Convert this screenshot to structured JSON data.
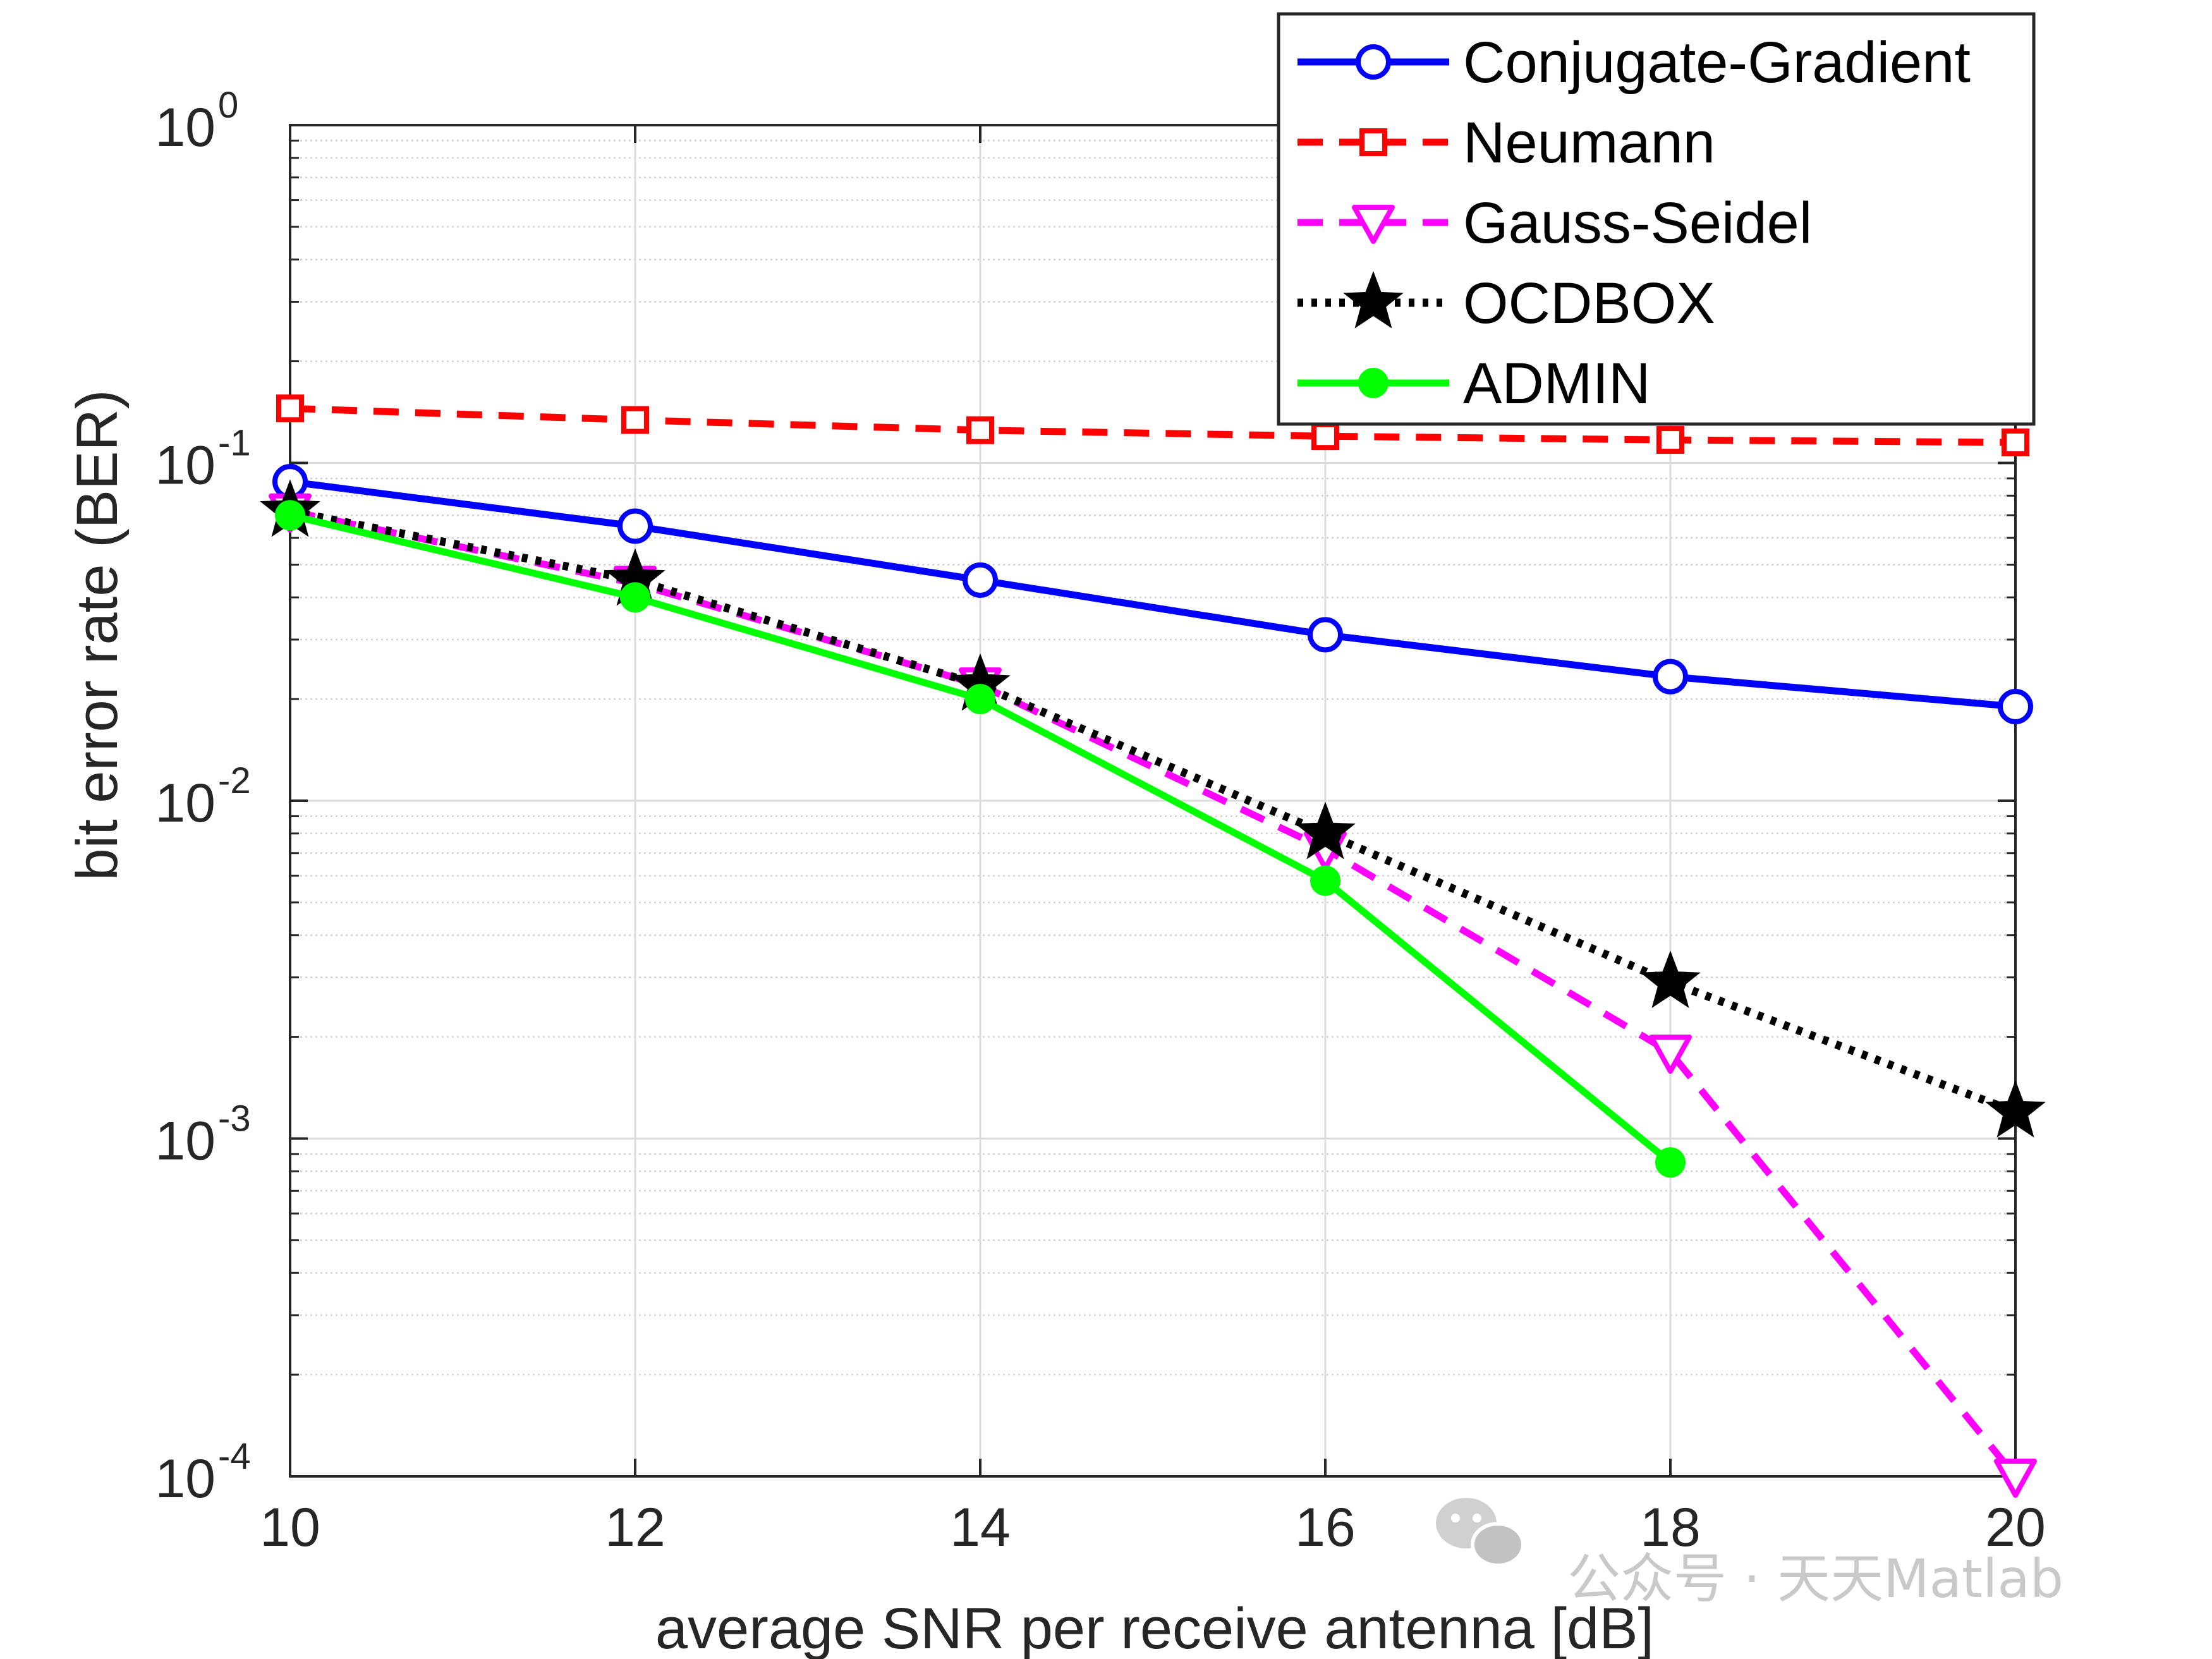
{
  "chart_data": {
    "type": "line",
    "title": "",
    "xlabel": "average SNR per receive antenna [dB]",
    "ylabel": "bit error rate (BER)",
    "xscale": "linear",
    "yscale": "log",
    "xlim": [
      10,
      20
    ],
    "ylim": [
      0.0001,
      1
    ],
    "grid": true,
    "legend_position": "top-right",
    "x_ticks": [
      10,
      12,
      14,
      16,
      18,
      20
    ],
    "x_tick_labels": [
      "10",
      "12",
      "14",
      "16",
      "18",
      "20"
    ],
    "y_ticks": [
      {
        "value": 1,
        "base": "10",
        "exponent": "0"
      },
      {
        "value": 0.1,
        "base": "10",
        "exponent": "-1"
      },
      {
        "value": 0.01,
        "base": "10",
        "exponent": "-2"
      },
      {
        "value": 0.001,
        "base": "10",
        "exponent": "-3"
      },
      {
        "value": 0.0001,
        "base": "10",
        "exponent": "-4"
      }
    ],
    "series": [
      {
        "name": "Conjugate-Gradient",
        "color": "#0000ff",
        "dash": "solid",
        "marker": "circle",
        "marker_fill": "none",
        "x": [
          10,
          12,
          14,
          16,
          18,
          20
        ],
        "y": [
          0.088,
          0.065,
          0.045,
          0.031,
          0.0233,
          0.019
        ]
      },
      {
        "name": "Neumann",
        "color": "#ff0000",
        "dash": "dashed",
        "marker": "square",
        "marker_fill": "none",
        "x": [
          10,
          12,
          14,
          16,
          18,
          20
        ],
        "y": [
          0.145,
          0.134,
          0.125,
          0.12,
          0.117,
          0.115
        ]
      },
      {
        "name": "Gauss-Seidel",
        "color": "#ff00ff",
        "dash": "dashed",
        "marker": "triangle-down",
        "marker_fill": "none",
        "x": [
          10,
          12,
          14,
          16,
          18,
          20
        ],
        "y": [
          0.072,
          0.044,
          0.022,
          0.0072,
          0.0018,
          0.0001
        ]
      },
      {
        "name": "OCDBOX",
        "color": "#000000",
        "dash": "dotted",
        "marker": "star",
        "marker_fill": "#000000",
        "x": [
          10,
          12,
          14,
          16,
          18,
          20
        ],
        "y": [
          0.072,
          0.045,
          0.022,
          0.008,
          0.0029,
          0.0012
        ]
      },
      {
        "name": "ADMIN",
        "color": "#00ff00",
        "dash": "solid",
        "marker": "dot",
        "marker_fill": "#00ff00",
        "x": [
          10,
          12,
          14,
          16,
          18
        ],
        "y": [
          0.07,
          0.04,
          0.02,
          0.0058,
          0.00085
        ]
      }
    ]
  },
  "watermark": {
    "text": "公众号 · 天天Matlab",
    "icon": "wechat-icon"
  }
}
